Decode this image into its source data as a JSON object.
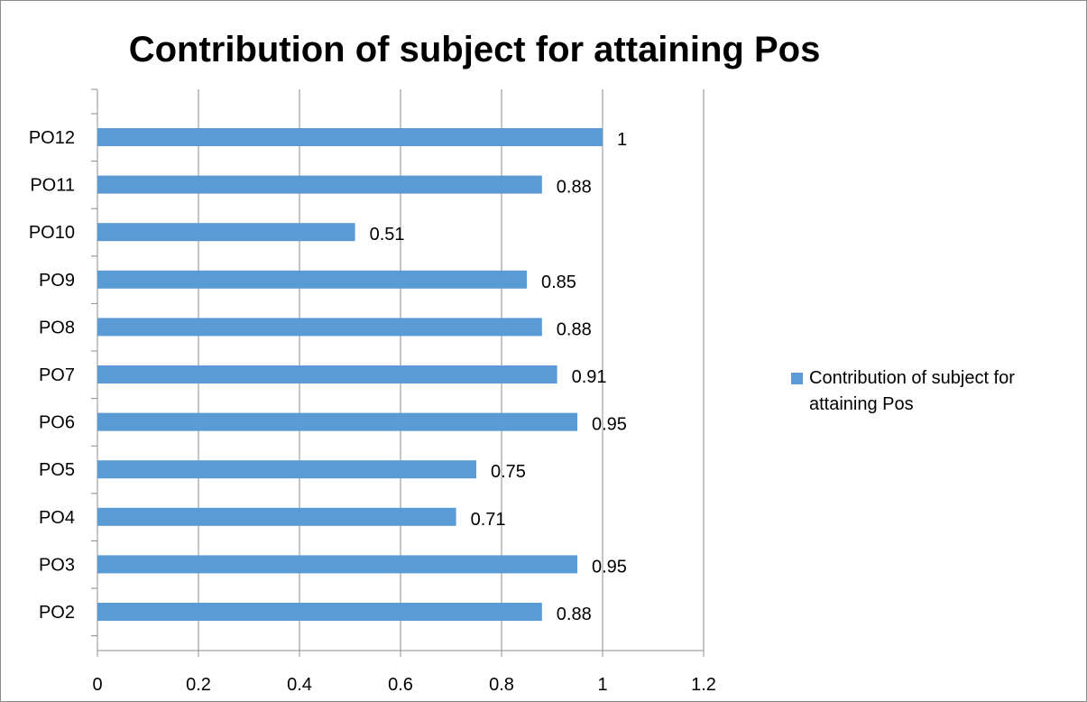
{
  "chart_data": {
    "type": "bar",
    "orientation": "horizontal",
    "title": "Contribution of subject for attaining Pos",
    "categories": [
      "PO2",
      "PO3",
      "PO4",
      "PO5",
      "PO6",
      "PO7",
      "PO8",
      "PO9",
      "PO10",
      "PO11",
      "PO12"
    ],
    "series": [
      {
        "name": "Contribution of subject for attaining Pos",
        "values": [
          0.88,
          0.95,
          0.71,
          0.75,
          0.95,
          0.91,
          0.88,
          0.85,
          0.51,
          0.88,
          1
        ],
        "data_labels": [
          "0.88",
          "0.95",
          "0.71",
          "0.75",
          "0.95",
          "0.91",
          "0.88",
          "0.85",
          "0.51",
          "0.88",
          "1"
        ],
        "color": "#5b9bd5"
      }
    ],
    "xlim": [
      0,
      1.2
    ],
    "x_ticks": [
      "0",
      "0.2",
      "0.4",
      "0.6",
      "0.8",
      "1",
      "1.2"
    ],
    "xlabel": "",
    "ylabel": "",
    "grid": "vertical major gridlines",
    "legend_position": "right"
  }
}
